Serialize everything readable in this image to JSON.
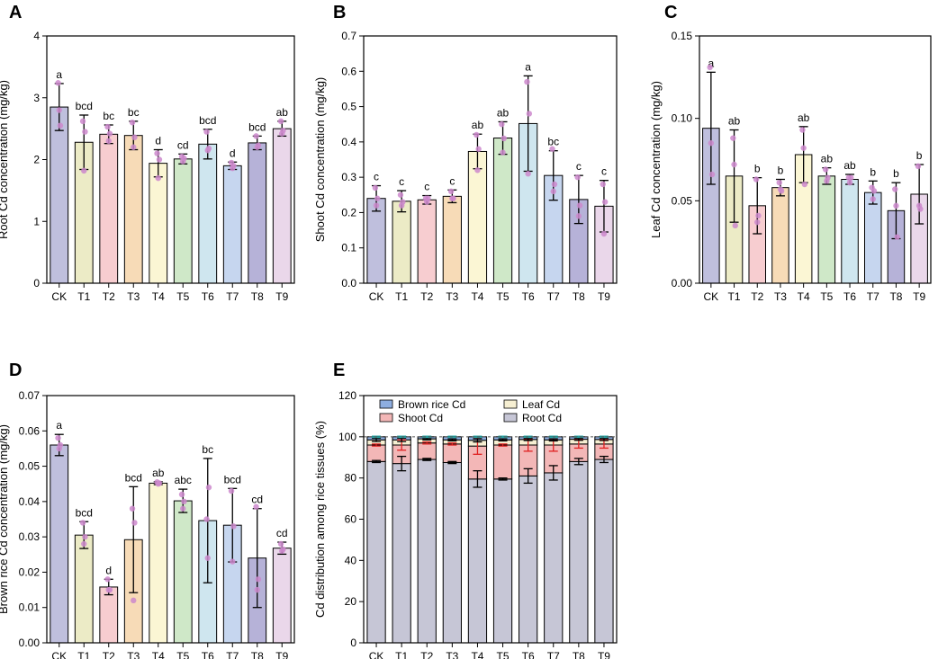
{
  "figure": {
    "treatments": [
      "CK",
      "T1",
      "T2",
      "T3",
      "T4",
      "T5",
      "T6",
      "T7",
      "T8",
      "T9"
    ],
    "bar_colors": [
      "#bfbfdd",
      "#ecebc6",
      "#f7cdd0",
      "#f7dbb7",
      "#fbf6d4",
      "#cfe8c8",
      "#cfe6ef",
      "#c6d6ef",
      "#b6b2d8",
      "#ead7ea"
    ],
    "dot_color": "#cc88cc",
    "error_color": "#000000"
  },
  "chart_data": [
    {
      "panel": "A",
      "type": "bar",
      "ylabel": "Root Cd concentration (mg/kg)",
      "ylim": [
        0,
        4
      ],
      "yticks": [
        0,
        1,
        2,
        3,
        4
      ],
      "ytick_labels": [
        "0",
        "1",
        "2",
        "3",
        "4"
      ],
      "categories": [
        "CK",
        "T1",
        "T2",
        "T3",
        "T4",
        "T5",
        "T6",
        "T7",
        "T8",
        "T9"
      ],
      "values": [
        2.85,
        2.28,
        2.41,
        2.39,
        1.94,
        2.01,
        2.25,
        1.9,
        2.27,
        2.5
      ],
      "errors": [
        0.38,
        0.44,
        0.15,
        0.23,
        0.22,
        0.08,
        0.24,
        0.06,
        0.11,
        0.12
      ],
      "points": [
        [
          3.24,
          2.8,
          2.55
        ],
        [
          2.62,
          1.82,
          2.45
        ],
        [
          2.53,
          2.3,
          2.42
        ],
        [
          2.6,
          2.2,
          2.36
        ],
        [
          2.1,
          1.7,
          2.0
        ],
        [
          2.05,
          1.97,
          2.02
        ],
        [
          2.45,
          2.15,
          2.18
        ],
        [
          1.95,
          1.86,
          1.9
        ],
        [
          2.38,
          2.2,
          2.23
        ],
        [
          2.62,
          2.42,
          2.47
        ]
      ],
      "letters": [
        "a",
        "bcd",
        "bc",
        "bc",
        "d",
        "cd",
        "bcd",
        "d",
        "bcd",
        "ab"
      ]
    },
    {
      "panel": "B",
      "type": "bar",
      "ylabel": "Shoot Cd concentration (mg/kg)",
      "ylim": [
        0,
        0.7
      ],
      "yticks": [
        0,
        0.1,
        0.2,
        0.3,
        0.4,
        0.5,
        0.6,
        0.7
      ],
      "ytick_labels": [
        "0.0",
        "0.1",
        "0.2",
        "0.3",
        "0.4",
        "0.5",
        "0.6",
        "0.7"
      ],
      "categories": [
        "CK",
        "T1",
        "T2",
        "T3",
        "T4",
        "T5",
        "T6",
        "T7",
        "T8",
        "T9"
      ],
      "values": [
        0.24,
        0.232,
        0.236,
        0.246,
        0.373,
        0.411,
        0.452,
        0.305,
        0.237,
        0.218
      ],
      "errors": [
        0.036,
        0.03,
        0.012,
        0.018,
        0.049,
        0.046,
        0.135,
        0.07,
        0.068,
        0.073
      ],
      "points": [
        [
          0.27,
          0.22,
          0.24
        ],
        [
          0.25,
          0.22,
          0.23
        ],
        [
          0.24,
          0.23,
          0.24
        ],
        [
          0.26,
          0.24,
          0.24
        ],
        [
          0.42,
          0.32,
          0.38
        ],
        [
          0.45,
          0.37,
          0.41
        ],
        [
          0.57,
          0.31,
          0.48
        ],
        [
          0.38,
          0.26,
          0.28
        ],
        [
          0.3,
          0.19,
          0.22
        ],
        [
          0.28,
          0.14,
          0.23
        ]
      ],
      "letters": [
        "c",
        "c",
        "c",
        "c",
        "ab",
        "ab",
        "a",
        "bc",
        "c",
        "c"
      ]
    },
    {
      "panel": "C",
      "type": "bar",
      "ylabel": "Leaf Cd concentration (mg/kg)",
      "ylim": [
        0,
        0.15
      ],
      "yticks": [
        0,
        0.05,
        0.1,
        0.15
      ],
      "ytick_labels": [
        "0.00",
        "0.05",
        "0.10",
        "0.15"
      ],
      "categories": [
        "CK",
        "T1",
        "T2",
        "T3",
        "T4",
        "T5",
        "T6",
        "T7",
        "T8",
        "T9"
      ],
      "values": [
        0.094,
        0.065,
        0.047,
        0.058,
        0.078,
        0.065,
        0.063,
        0.055,
        0.044,
        0.054
      ],
      "errors": [
        0.034,
        0.028,
        0.017,
        0.005,
        0.017,
        0.005,
        0.003,
        0.007,
        0.017,
        0.018
      ],
      "points": [
        [
          0.131,
          0.085,
          0.066
        ],
        [
          0.088,
          0.072,
          0.035
        ],
        [
          0.063,
          0.037,
          0.041
        ],
        [
          0.061,
          0.057,
          0.056
        ],
        [
          0.093,
          0.082,
          0.06
        ],
        [
          0.069,
          0.062,
          0.064
        ],
        [
          0.064,
          0.061,
          0.064
        ],
        [
          0.058,
          0.051,
          0.056
        ],
        [
          0.057,
          0.047,
          0.028
        ],
        [
          0.071,
          0.047,
          0.045
        ]
      ],
      "letters": [
        "a",
        "ab",
        "b",
        "b",
        "ab",
        "ab",
        "ab",
        "b",
        "b",
        "b"
      ]
    },
    {
      "panel": "D",
      "type": "bar",
      "ylabel": "Brown rice Cd concentration (mg/kg)",
      "ylim": [
        0,
        0.07
      ],
      "yticks": [
        0,
        0.01,
        0.02,
        0.03,
        0.04,
        0.05,
        0.06,
        0.07
      ],
      "ytick_labels": [
        "0.00",
        "0.01",
        "0.02",
        "0.03",
        "0.04",
        "0.05",
        "0.06",
        "0.07"
      ],
      "categories": [
        "CK",
        "T1",
        "T2",
        "T3",
        "T4",
        "T5",
        "T6",
        "T7",
        "T8",
        "T9"
      ],
      "values": [
        0.056,
        0.0305,
        0.0158,
        0.0292,
        0.0452,
        0.0402,
        0.0346,
        0.0333,
        0.024,
        0.0268
      ],
      "errors": [
        0.003,
        0.0038,
        0.0022,
        0.015,
        0.0004,
        0.0033,
        0.0176,
        0.0104,
        0.014,
        0.0017
      ],
      "points": [
        [
          0.058,
          0.055,
          0.056
        ],
        [
          0.034,
          0.028,
          0.03
        ],
        [
          0.018,
          0.015,
          0.015
        ],
        [
          0.038,
          0.012,
          0.034
        ],
        [
          0.0455,
          0.045,
          0.0452
        ],
        [
          0.042,
          0.038,
          0.04
        ],
        [
          0.035,
          0.024,
          0.044
        ],
        [
          0.043,
          0.023,
          0.033
        ],
        [
          0.0385,
          0.015,
          0.018
        ],
        [
          0.028,
          0.026,
          0.0265
        ]
      ],
      "letters": [
        "a",
        "bcd",
        "d",
        "bcd",
        "ab",
        "abc",
        "bc",
        "bcd",
        "cd",
        "cd"
      ]
    },
    {
      "panel": "E",
      "type": "stacked_bar",
      "ylabel": "Cd distribution among rice tissues (%)",
      "ylim": [
        0,
        120
      ],
      "yticks": [
        0,
        20,
        40,
        60,
        80,
        100,
        120
      ],
      "ytick_labels": [
        "0",
        "20",
        "40",
        "60",
        "80",
        "100",
        "120"
      ],
      "categories": [
        "CK",
        "T1",
        "T2",
        "T3",
        "T4",
        "T5",
        "T6",
        "T7",
        "T8",
        "T9"
      ],
      "reference_line": 100,
      "series": [
        {
          "name": "Root Cd",
          "color": "#c6c6d6",
          "values": [
            88.0,
            87.0,
            89.0,
            87.5,
            79.5,
            79.5,
            81.0,
            82.5,
            88.0,
            89.0
          ],
          "errors": [
            0.5,
            3.5,
            0.5,
            0.5,
            4.0,
            0.5,
            3.5,
            3.5,
            1.5,
            1.5
          ]
        },
        {
          "name": "Shoot Cd",
          "color": "#f3b7b7",
          "values": [
            8.0,
            9.0,
            8.0,
            9.0,
            16.0,
            16.5,
            15.0,
            13.5,
            8.5,
            7.5
          ],
          "errors": [
            0.5,
            2.5,
            0.5,
            0.5,
            4.0,
            0.5,
            3.0,
            3.0,
            2.0,
            2.0
          ]
        },
        {
          "name": "Leaf Cd",
          "color": "#f6efd2",
          "values": [
            2.5,
            2.5,
            2.0,
            2.0,
            2.8,
            2.5,
            2.7,
            2.5,
            2.3,
            2.2
          ],
          "errors": [
            0.8,
            0.8,
            0.5,
            0.5,
            0.8,
            0.5,
            0.5,
            0.5,
            0.5,
            0.5
          ]
        },
        {
          "name": "Brown rice Cd",
          "color": "#8eaee0",
          "values": [
            1.5,
            1.5,
            1.0,
            1.5,
            1.7,
            1.5,
            1.3,
            1.5,
            1.2,
            1.3
          ],
          "errors": [
            0.3,
            0.3,
            0.3,
            0.3,
            0.3,
            0.3,
            0.3,
            0.3,
            0.3,
            0.3
          ]
        }
      ],
      "legend": [
        "Brown rice Cd",
        "Leaf Cd",
        "Shoot Cd",
        "Root Cd"
      ]
    }
  ]
}
